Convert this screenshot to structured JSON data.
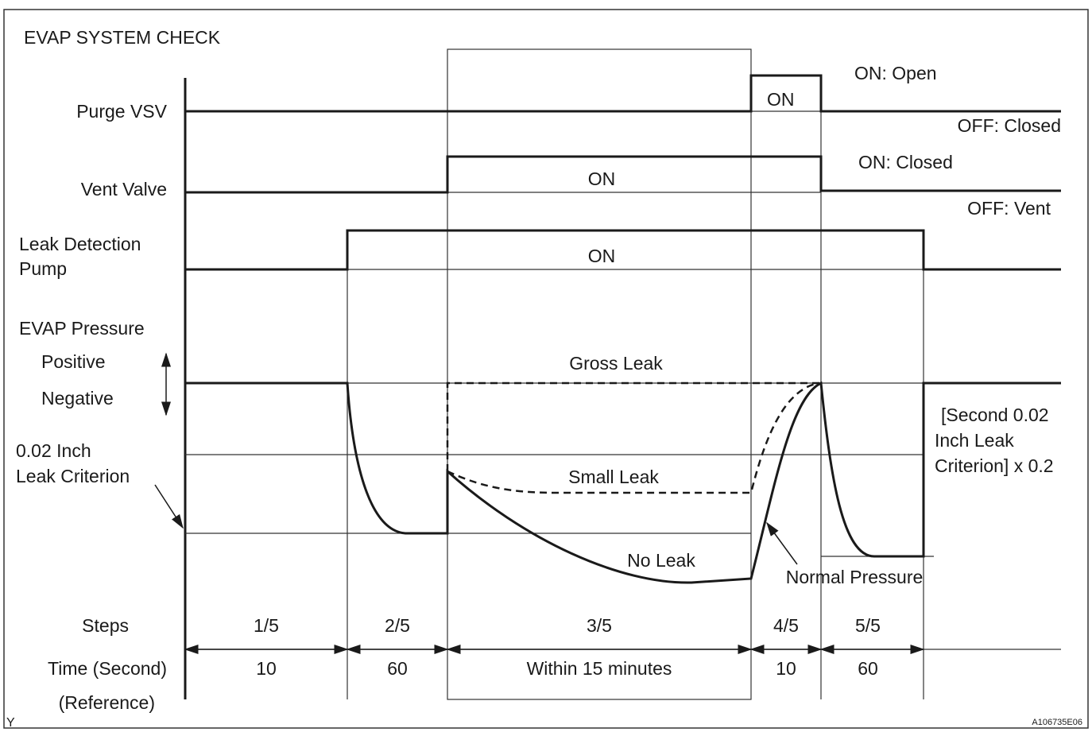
{
  "title": "EVAP SYSTEM CHECK",
  "signals": {
    "purge_vsv": "Purge VSV",
    "vent_valve": "Vent Valve",
    "pump": [
      "Leak Detection",
      "Pump"
    ],
    "evap_pressure": "EVAP Pressure"
  },
  "purge_states": {
    "on_label": "ON",
    "on": "ON: Open",
    "off": "OFF: Closed"
  },
  "vent_states": {
    "on_label": "ON",
    "on": "ON: Closed",
    "off": "OFF: Vent"
  },
  "pump_states": {
    "on_label": "ON"
  },
  "pressure": {
    "positive": "Positive",
    "negative": "Negative",
    "criterion": [
      "0.02 Inch",
      "Leak Criterion"
    ],
    "gross_leak": "Gross Leak",
    "small_leak": "Small Leak",
    "no_leak": "No Leak",
    "normal_pressure": "Normal Pressure",
    "second_criterion": [
      "[Second 0.02",
      "Inch Leak",
      "Criterion] x 0.2"
    ]
  },
  "steps": {
    "label": "Steps",
    "items": [
      "1/5",
      "2/5",
      "3/5",
      "4/5",
      "5/5"
    ]
  },
  "time": {
    "label": "Time (Second)",
    "sublabel": "(Reference)",
    "items": [
      "10",
      "60",
      "Within 15 minutes",
      "10",
      "60"
    ]
  },
  "footer": {
    "left": "Y",
    "right": "A106735E06"
  }
}
